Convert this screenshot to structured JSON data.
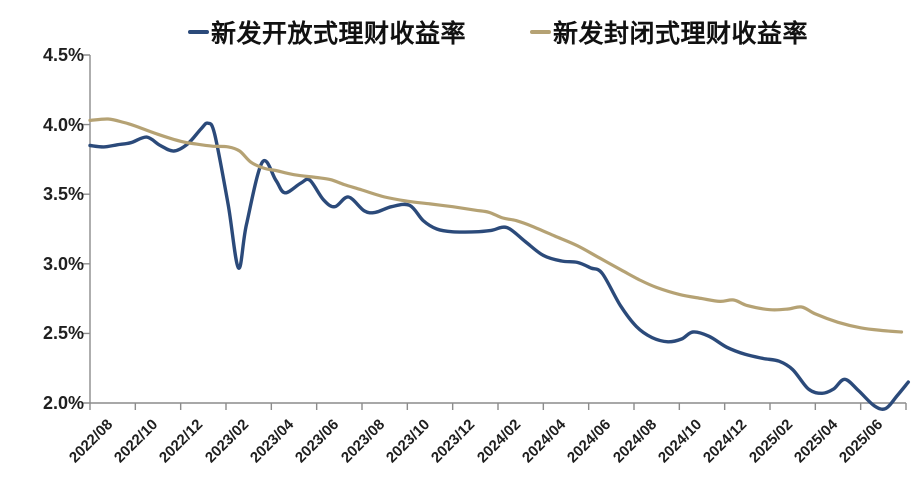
{
  "page": {
    "background": "#ffffff"
  },
  "axis": {
    "line_color": "#8c8c8c",
    "label_color": "#1f1f1f"
  },
  "chart_data": {
    "type": "line",
    "title": "",
    "xlabel": "",
    "ylabel": "",
    "grid": false,
    "legend_position": "top-center",
    "ylim": [
      2.0,
      4.5
    ],
    "y_tick_labels": [
      "4.5%",
      "4.0%",
      "3.5%",
      "3.0%",
      "2.5%",
      "2.0%"
    ],
    "y_tick_values": [
      4.5,
      4.0,
      3.5,
      3.0,
      2.5,
      2.0
    ],
    "x_tick_labels": [
      "2022/08",
      "2022/10",
      "2022/12",
      "2023/02",
      "2023/04",
      "2023/06",
      "2023/08",
      "2023/10",
      "2023/12",
      "2024/02",
      "2024/04",
      "2024/06",
      "2024/08",
      "2024/10",
      "2024/12",
      "2025/02",
      "2025/04",
      "2025/06"
    ],
    "x_months_per_tick": 2,
    "x_domain_months": [
      0,
      36.1
    ],
    "unit": "%",
    "series": [
      {
        "name": "新发开放式理财收益率",
        "color": "#2b4a7a",
        "line_width": 3.4,
        "points": [
          [
            0,
            3.85
          ],
          [
            0.6,
            3.84
          ],
          [
            1.2,
            3.855
          ],
          [
            1.8,
            3.87
          ],
          [
            2.5,
            3.91
          ],
          [
            3.1,
            3.85
          ],
          [
            3.7,
            3.81
          ],
          [
            4.3,
            3.86
          ],
          [
            4.9,
            3.97
          ],
          [
            5.2,
            4.01
          ],
          [
            5.5,
            3.93
          ],
          [
            6.1,
            3.42
          ],
          [
            6.55,
            2.97
          ],
          [
            6.9,
            3.28
          ],
          [
            7.6,
            3.73
          ],
          [
            8.2,
            3.6
          ],
          [
            8.6,
            3.51
          ],
          [
            9.3,
            3.58
          ],
          [
            9.7,
            3.6
          ],
          [
            10.3,
            3.46
          ],
          [
            10.8,
            3.41
          ],
          [
            11.4,
            3.48
          ],
          [
            12.1,
            3.38
          ],
          [
            12.6,
            3.37
          ],
          [
            13.3,
            3.41
          ],
          [
            14.1,
            3.42
          ],
          [
            14.7,
            3.31
          ],
          [
            15.3,
            3.25
          ],
          [
            16,
            3.23
          ],
          [
            17,
            3.23
          ],
          [
            17.7,
            3.24
          ],
          [
            18.4,
            3.26
          ],
          [
            19.2,
            3.16
          ],
          [
            20,
            3.06
          ],
          [
            20.8,
            3.02
          ],
          [
            21.5,
            3.01
          ],
          [
            22.1,
            2.97
          ],
          [
            22.6,
            2.93
          ],
          [
            23.4,
            2.7
          ],
          [
            24.1,
            2.55
          ],
          [
            24.8,
            2.47
          ],
          [
            25.5,
            2.44
          ],
          [
            26.1,
            2.46
          ],
          [
            26.6,
            2.51
          ],
          [
            27.3,
            2.48
          ],
          [
            28.1,
            2.4
          ],
          [
            28.9,
            2.35
          ],
          [
            29.7,
            2.32
          ],
          [
            30.4,
            2.3
          ],
          [
            31,
            2.24
          ],
          [
            31.7,
            2.1
          ],
          [
            32.3,
            2.07
          ],
          [
            32.8,
            2.1
          ],
          [
            33.3,
            2.17
          ],
          [
            33.9,
            2.09
          ],
          [
            34.6,
            1.98
          ],
          [
            35.1,
            1.96
          ],
          [
            35.6,
            2.05
          ],
          [
            36.1,
            2.15
          ]
        ]
      },
      {
        "name": "新发封闭式理财收益率",
        "color": "#b5a274",
        "line_width": 3.2,
        "points": [
          [
            0,
            4.03
          ],
          [
            0.8,
            4.04
          ],
          [
            1.5,
            4.015
          ],
          [
            2,
            3.99
          ],
          [
            3,
            3.93
          ],
          [
            4,
            3.88
          ],
          [
            4.7,
            3.86
          ],
          [
            5.4,
            3.845
          ],
          [
            6.1,
            3.84
          ],
          [
            6.6,
            3.81
          ],
          [
            7.1,
            3.73
          ],
          [
            7.7,
            3.685
          ],
          [
            8.2,
            3.67
          ],
          [
            9,
            3.64
          ],
          [
            10,
            3.62
          ],
          [
            10.6,
            3.605
          ],
          [
            11.2,
            3.57
          ],
          [
            12,
            3.53
          ],
          [
            13,
            3.48
          ],
          [
            14,
            3.45
          ],
          [
            15,
            3.43
          ],
          [
            16,
            3.41
          ],
          [
            17,
            3.385
          ],
          [
            17.6,
            3.37
          ],
          [
            18.2,
            3.33
          ],
          [
            18.8,
            3.31
          ],
          [
            19.5,
            3.27
          ],
          [
            20.5,
            3.2
          ],
          [
            21.5,
            3.13
          ],
          [
            22.5,
            3.04
          ],
          [
            23.5,
            2.95
          ],
          [
            24.3,
            2.88
          ],
          [
            25,
            2.83
          ],
          [
            26,
            2.78
          ],
          [
            27,
            2.75
          ],
          [
            27.8,
            2.73
          ],
          [
            28.4,
            2.74
          ],
          [
            29,
            2.7
          ],
          [
            30,
            2.67
          ],
          [
            30.8,
            2.675
          ],
          [
            31.4,
            2.69
          ],
          [
            32,
            2.64
          ],
          [
            33,
            2.58
          ],
          [
            34,
            2.54
          ],
          [
            35,
            2.52
          ],
          [
            35.8,
            2.51
          ]
        ]
      }
    ]
  }
}
